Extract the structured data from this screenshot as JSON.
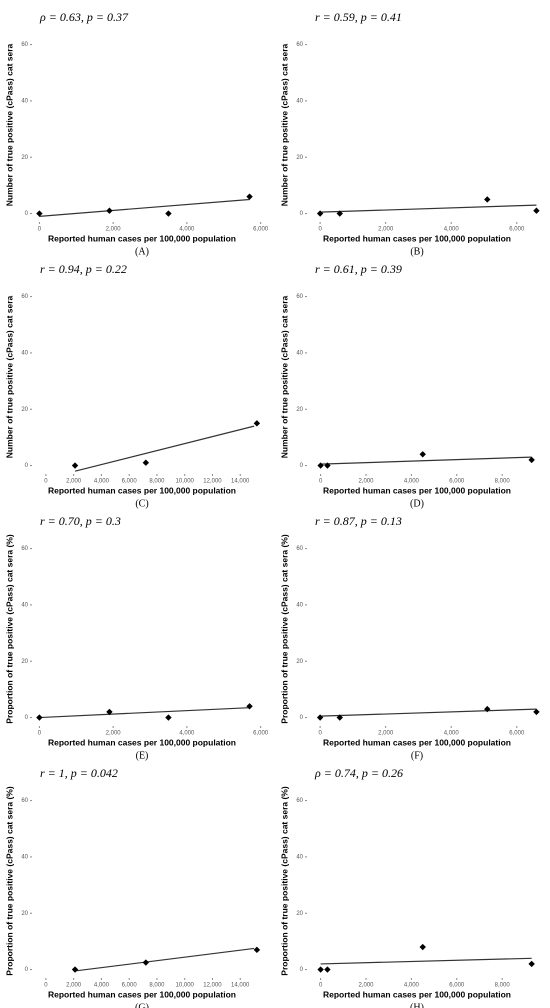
{
  "chart_data": [
    {
      "type": "scatter",
      "panel": "(A)",
      "annotation": "ρ = 0.63, p = 0.37",
      "x_label": "Reported human cases per 100,000 population",
      "y_label": "Number of true positive (cPass) cat sera",
      "xlim": [
        -200,
        6200
      ],
      "ylim": [
        -3,
        73
      ],
      "xticks": [
        0,
        {
          "value": 2000,
          "label": "2,000"
        },
        {
          "value": 4000,
          "label": "4,000"
        },
        {
          "value": 6000,
          "label": "6,000"
        }
      ],
      "yticks": [
        0,
        20,
        40,
        60
      ],
      "color": "#000000",
      "x": [
        0,
        1900,
        3500,
        5700
      ],
      "values": [
        0,
        1,
        0,
        6
      ],
      "fit_line": {
        "x": [
          0,
          5700
        ],
        "y": [
          -1,
          5
        ]
      }
    },
    {
      "type": "scatter",
      "panel": "(B)",
      "annotation": "r = 0.59, p = 0.41",
      "x_label": "Reported human cases per 100,000 population",
      "y_label": "Number of true positive (cPass) cat sera",
      "xlim": [
        -400,
        6800
      ],
      "ylim": [
        -3,
        73
      ],
      "xticks": [
        0,
        {
          "value": 2000,
          "label": "2,000"
        },
        {
          "value": 4000,
          "label": "4,000"
        },
        {
          "value": 6000,
          "label": "6,000"
        }
      ],
      "yticks": [
        0,
        20,
        40,
        60
      ],
      "color": "#000000",
      "x": [
        0,
        600,
        5100,
        6600
      ],
      "values": [
        0,
        0,
        5,
        1
      ],
      "fit_line": {
        "x": [
          0,
          6600
        ],
        "y": [
          0.5,
          3
        ]
      }
    },
    {
      "type": "scatter",
      "panel": "(C)",
      "annotation": "r = 0.94, p = 0.22",
      "x_label": "Reported human cases per 100,000 population",
      "y_label": "Number of true positive (cPass) cat sera",
      "xlim": [
        -1000,
        16000
      ],
      "ylim": [
        -3,
        73
      ],
      "xticks": [
        0,
        {
          "value": 2000,
          "label": "2,000"
        },
        {
          "value": 4000,
          "label": "4,000"
        },
        {
          "value": 6000,
          "label": "6,000"
        },
        {
          "value": 8000,
          "label": "8,000"
        },
        {
          "value": 10000,
          "label": "10,000"
        },
        {
          "value": 12000,
          "label": "12,000"
        },
        {
          "value": 14000,
          "label": "14,000"
        }
      ],
      "yticks": [
        0,
        20,
        40,
        60
      ],
      "color": "#000000",
      "x": [
        2100,
        7200,
        15200
      ],
      "values": [
        0,
        1,
        15
      ],
      "fit_line": {
        "x": [
          2100,
          15000
        ],
        "y": [
          -2,
          14
        ]
      }
    },
    {
      "type": "scatter",
      "panel": "(D)",
      "annotation": "r = 0.61, p = 0.39",
      "x_label": "Reported human cases per 100,000 population",
      "y_label": "Number of true positive (cPass) cat sera",
      "xlim": [
        -600,
        9800
      ],
      "ylim": [
        -3,
        73
      ],
      "xticks": [
        0,
        {
          "value": 2000,
          "label": "2,000"
        },
        {
          "value": 4000,
          "label": "4,000"
        },
        {
          "value": 6000,
          "label": "6,000"
        },
        {
          "value": 8000,
          "label": "8,000"
        }
      ],
      "yticks": [
        0,
        20,
        40,
        60
      ],
      "color": "#000000",
      "x": [
        0,
        300,
        4500,
        9300
      ],
      "values": [
        0,
        0,
        4,
        2
      ],
      "fit_line": {
        "x": [
          0,
          9300
        ],
        "y": [
          0.5,
          3
        ]
      }
    },
    {
      "type": "scatter",
      "panel": "(E)",
      "annotation": "r = 0.70, p = 0.3",
      "x_label": "Reported human cases per 100,000 population",
      "y_label": "Proportion of true positive (cPass) cat sera (%)",
      "xlim": [
        -200,
        6200
      ],
      "ylim": [
        -3,
        73
      ],
      "xticks": [
        0,
        {
          "value": 2000,
          "label": "2,000"
        },
        {
          "value": 4000,
          "label": "4,000"
        },
        {
          "value": 6000,
          "label": "6,000"
        }
      ],
      "yticks": [
        0,
        20,
        40,
        60
      ],
      "color": "#000000",
      "x": [
        0,
        1900,
        3500,
        5700
      ],
      "values": [
        0,
        2,
        0,
        4
      ],
      "fit_line": {
        "x": [
          0,
          5700
        ],
        "y": [
          0,
          3.5
        ]
      }
    },
    {
      "type": "scatter",
      "panel": "(F)",
      "annotation": "r = 0.87, p = 0.13",
      "x_label": "Reported human cases per 100,000 population",
      "y_label": "Proportion of true positive (cPass) cat sera (%)",
      "xlim": [
        -400,
        6800
      ],
      "ylim": [
        -3,
        73
      ],
      "xticks": [
        0,
        {
          "value": 2000,
          "label": "2,000"
        },
        {
          "value": 4000,
          "label": "4,000"
        },
        {
          "value": 6000,
          "label": "6,000"
        }
      ],
      "yticks": [
        0,
        20,
        40,
        60
      ],
      "color": "#000000",
      "x": [
        0,
        600,
        5100,
        6600
      ],
      "values": [
        0,
        0,
        3,
        2
      ],
      "fit_line": {
        "x": [
          0,
          6600
        ],
        "y": [
          0.5,
          3
        ]
      }
    },
    {
      "type": "scatter",
      "panel": "(G)",
      "annotation": "r = 1, p = 0.042",
      "x_label": "Reported human cases per 100,000 population",
      "y_label": "Proportion of true positive (cPass) cat sera (%)",
      "xlim": [
        -1000,
        16000
      ],
      "ylim": [
        -3,
        73
      ],
      "xticks": [
        0,
        {
          "value": 2000,
          "label": "2,000"
        },
        {
          "value": 4000,
          "label": "4,000"
        },
        {
          "value": 6000,
          "label": "6,000"
        },
        {
          "value": 8000,
          "label": "8,000"
        },
        {
          "value": 10000,
          "label": "10,000"
        },
        {
          "value": 12000,
          "label": "12,000"
        },
        {
          "value": 14000,
          "label": "14,000"
        }
      ],
      "yticks": [
        0,
        20,
        40,
        60
      ],
      "color": "#000000",
      "x": [
        2100,
        7200,
        15200
      ],
      "values": [
        0,
        2.5,
        7
      ],
      "fit_line": {
        "x": [
          2100,
          15000
        ],
        "y": [
          -0.5,
          7.5
        ]
      }
    },
    {
      "type": "scatter",
      "panel": "(H)",
      "annotation": "ρ = 0.74, p = 0.26",
      "x_label": "Reported human cases per 100,000 population",
      "y_label": "Proportion of true positive (cPass) cat sera (%)",
      "xlim": [
        -600,
        9800
      ],
      "ylim": [
        -3,
        73
      ],
      "xticks": [
        0,
        {
          "value": 2000,
          "label": "2,000"
        },
        {
          "value": 4000,
          "label": "4,000"
        },
        {
          "value": 6000,
          "label": "6,000"
        },
        {
          "value": 8000,
          "label": "8,000"
        }
      ],
      "yticks": [
        0,
        20,
        40,
        60
      ],
      "color": "#000000",
      "x": [
        0,
        300,
        4500,
        9300
      ],
      "values": [
        0,
        0,
        8,
        2
      ],
      "fit_line": {
        "x": [
          0,
          9300
        ],
        "y": [
          2,
          4
        ]
      }
    }
  ]
}
